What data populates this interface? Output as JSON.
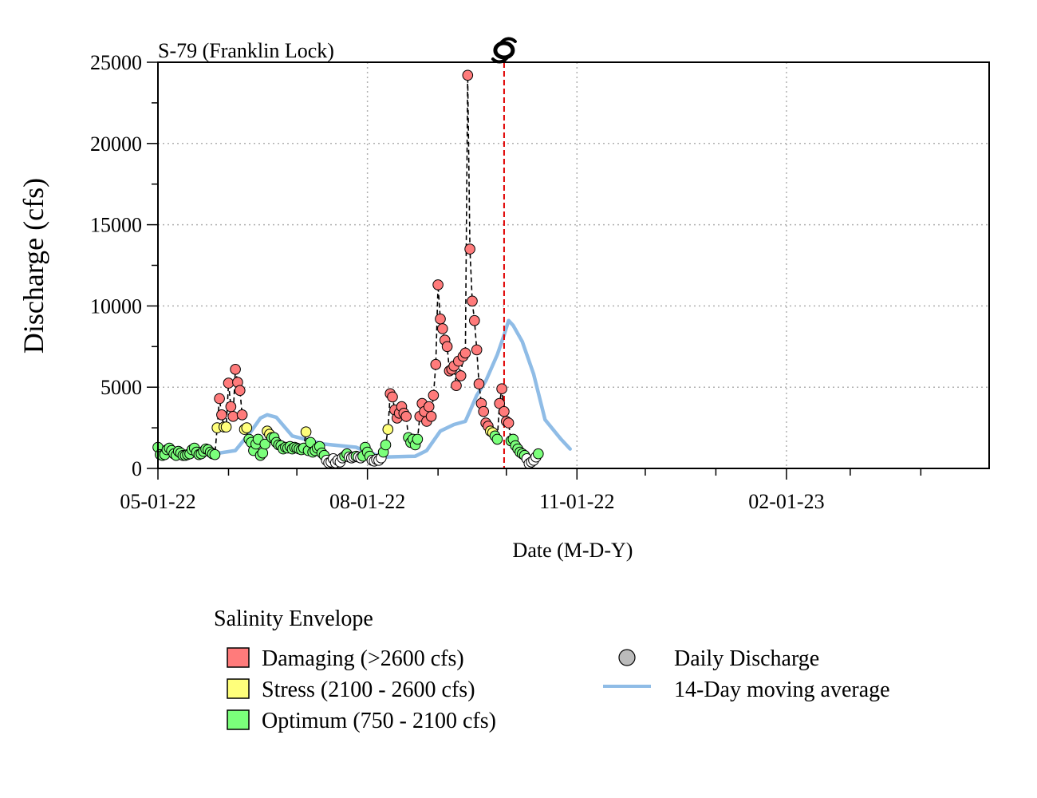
{
  "chart_data": {
    "type": "scatter",
    "station_label": "S-79 (Franklin Lock)",
    "xlabel": "Date (M-D-Y)",
    "ylabel": "Discharge (cfs)",
    "x_range": [
      "2022-05-01",
      "2023-05-01"
    ],
    "ylim": [
      0,
      25000
    ],
    "y_ticks": [
      0,
      5000,
      10000,
      15000,
      20000,
      25000
    ],
    "x_ticks": [
      {
        "date": "2022-05-01",
        "label": "05-01-22"
      },
      {
        "date": "2022-08-01",
        "label": "08-01-22"
      },
      {
        "date": "2022-11-01",
        "label": "11-01-22"
      },
      {
        "date": "2023-02-01",
        "label": "02-01-23"
      }
    ],
    "x_minor_ticks": [
      "2022-06-01",
      "2022-07-01",
      "2022-09-01",
      "2022-10-01",
      "2022-12-01",
      "2023-01-01",
      "2023-03-01",
      "2023-04-01"
    ],
    "grid": true,
    "event_marker": {
      "date": "2022-09-30",
      "icon": "hurricane-icon",
      "line_color": "#e00000"
    },
    "envelopes": [
      {
        "key": "damaging",
        "label": "Damaging (>2600 cfs)",
        "color": "#ff7b7b",
        "min": 2600
      },
      {
        "key": "stress",
        "label": "Stress (2100 - 2600 cfs)",
        "color": "#ffff7b",
        "min": 2100
      },
      {
        "key": "optimum",
        "label": "Optimum (750 - 2100 cfs)",
        "color": "#7bff7b",
        "min": 750
      },
      {
        "key": "low",
        "label": "",
        "color": "#ffffff",
        "min": 0
      }
    ],
    "legend_title": "Salinity Envelope",
    "legend_daily_label": "Daily Discharge",
    "legend_daily_color": "#bbbbbb",
    "legend_ma_label": "14-Day moving average",
    "ma_color": "#8fbce6",
    "start_date": "2022-05-01",
    "daily": [
      1300,
      850,
      800,
      850,
      1150,
      1250,
      1100,
      900,
      800,
      1050,
      950,
      800,
      800,
      850,
      900,
      1150,
      1250,
      1000,
      850,
      900,
      1050,
      1200,
      1150,
      1000,
      900,
      850,
      2500,
      4300,
      3300,
      2550,
      2550,
      5250,
      3800,
      3200,
      6100,
      5300,
      4800,
      3300,
      2400,
      2500,
      1800,
      1600,
      1100,
      1500,
      1800,
      800,
      950,
      1500,
      2300,
      2100,
      1900,
      1900,
      1600,
      1450,
      1400,
      1200,
      1300,
      1250,
      1350,
      1200,
      1300,
      1250,
      1200,
      1150,
      1250,
      2250,
      1100,
      1600,
      1000,
      1100,
      1250,
      1350,
      950,
      800,
      500,
      350,
      400,
      600,
      350,
      500,
      400,
      650,
      750,
      900,
      700,
      650,
      700,
      750,
      700,
      650,
      750,
      1300,
      1000,
      750,
      500,
      450,
      550,
      500,
      650,
      1000,
      1450,
      2400,
      4600,
      4400,
      3600,
      3100,
      3400,
      3800,
      3400,
      3200,
      1900,
      1600,
      1800,
      1450,
      1800,
      3200,
      4000,
      3500,
      2900,
      3800,
      3200,
      4500,
      6400,
      11300,
      9200,
      8600,
      7900,
      7500,
      6000,
      6100,
      6300,
      5100,
      6600,
      5700,
      6900,
      7100,
      24200,
      13500,
      10300,
      9100,
      7300,
      5200,
      4000,
      3500,
      2800,
      2600,
      2300,
      2200,
      2000,
      1800,
      4000,
      4900,
      3500,
      2900,
      2800,
      1700,
      1800,
      1400,
      1200,
      1000,
      900,
      800,
      600,
      300,
      400,
      500,
      700,
      900
    ],
    "moving_average": [
      [
        "2022-05-01",
        800
      ],
      [
        "2022-05-15",
        850
      ],
      [
        "2022-05-28",
        950
      ],
      [
        "2022-06-04",
        1100
      ],
      [
        "2022-06-11",
        2300
      ],
      [
        "2022-06-15",
        3100
      ],
      [
        "2022-06-18",
        3300
      ],
      [
        "2022-06-22",
        3150
      ],
      [
        "2022-06-29",
        2000
      ],
      [
        "2022-07-13",
        1500
      ],
      [
        "2022-07-27",
        1300
      ],
      [
        "2022-08-01",
        1000
      ],
      [
        "2022-08-08",
        700
      ],
      [
        "2022-08-22",
        750
      ],
      [
        "2022-08-27",
        1100
      ],
      [
        "2022-09-02",
        2300
      ],
      [
        "2022-09-08",
        2700
      ],
      [
        "2022-09-13",
        2900
      ],
      [
        "2022-09-18",
        4500
      ],
      [
        "2022-09-22",
        5400
      ],
      [
        "2022-09-27",
        7000
      ],
      [
        "2022-09-30",
        8200
      ],
      [
        "2022-10-02",
        9100
      ],
      [
        "2022-10-04",
        8800
      ],
      [
        "2022-10-08",
        7800
      ],
      [
        "2022-10-13",
        5800
      ],
      [
        "2022-10-18",
        3000
      ],
      [
        "2022-10-25",
        1800
      ],
      [
        "2022-10-29",
        1200
      ]
    ]
  }
}
